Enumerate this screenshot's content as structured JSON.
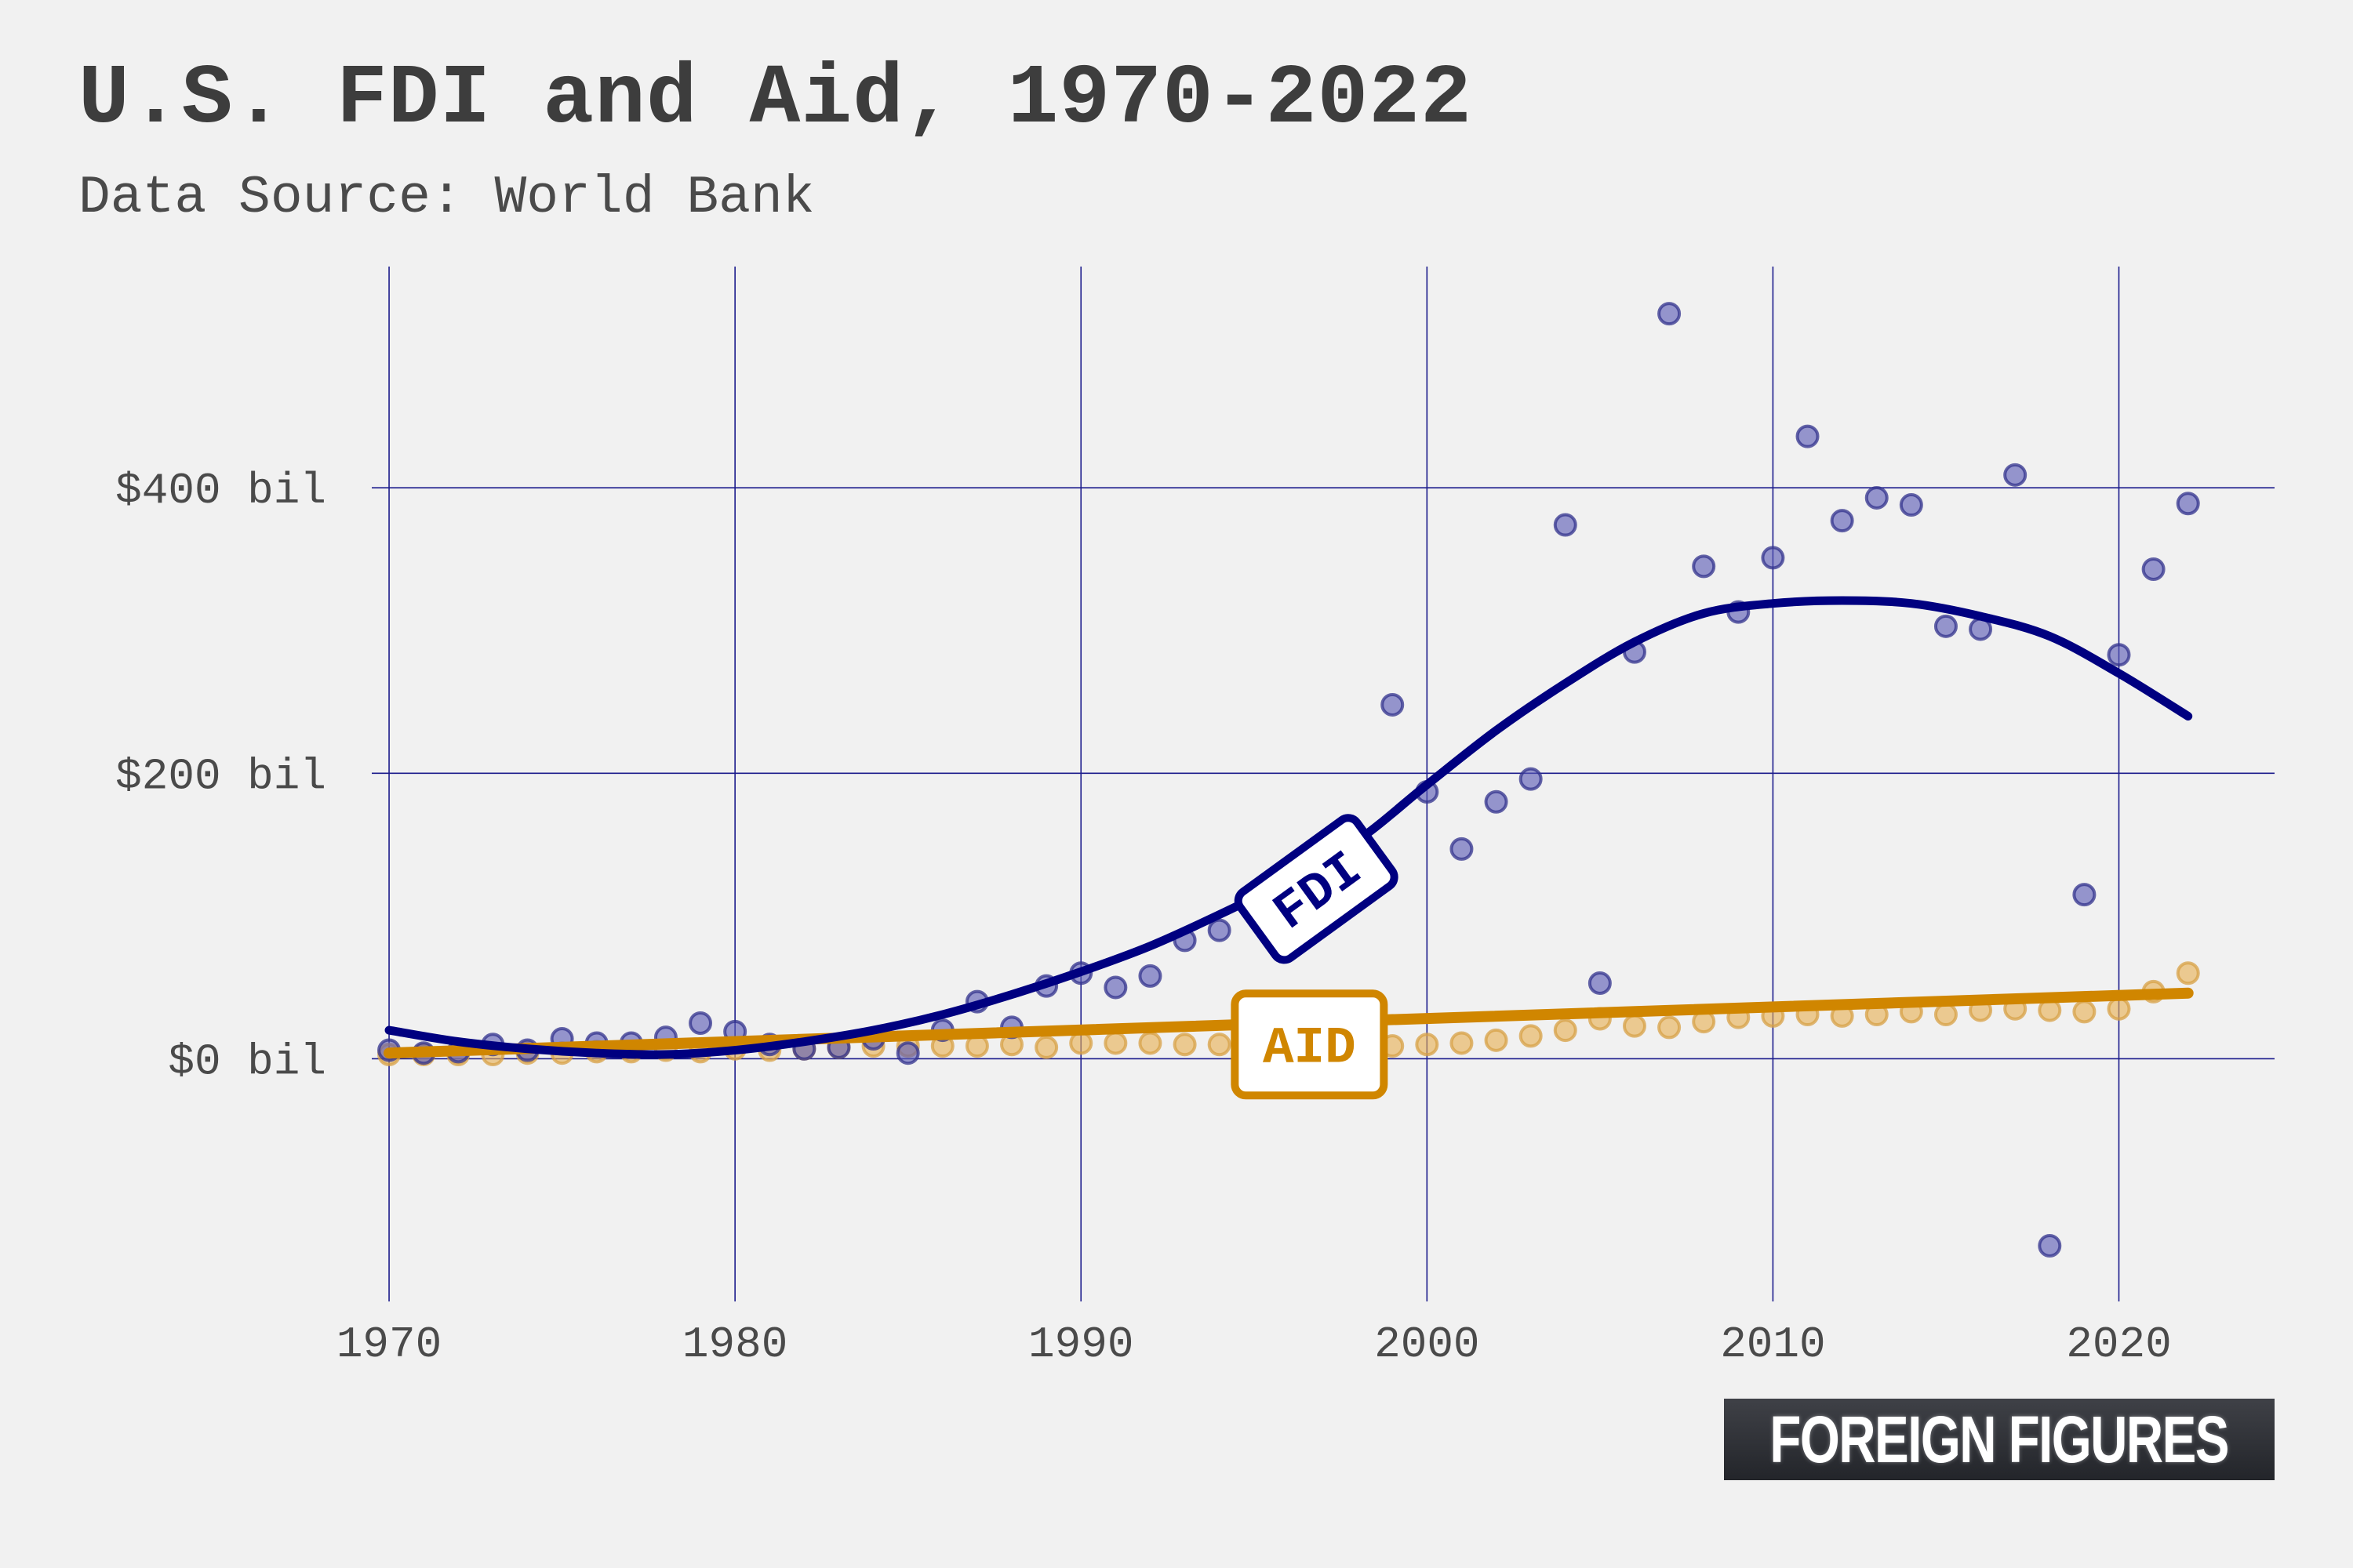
{
  "title": "U.S. FDI and Aid, 1970-2022",
  "subtitle": "Data Source: World Bank",
  "brand": "FOREIGN FIGURES",
  "chart_data": {
    "type": "scatter",
    "x_ticks": [
      1970,
      1980,
      1990,
      2000,
      2010,
      2020
    ],
    "y_ticks": [
      0,
      200,
      400
    ],
    "y_tick_labels": [
      "$0 bil",
      "$200 bil",
      "$400 bil"
    ],
    "xlim": [
      1969.5,
      2024.5
    ],
    "ylim": [
      -170,
      555
    ],
    "grid": true,
    "series": [
      {
        "name": "FDI",
        "label": "FDI",
        "color": "#000080",
        "x": [
          1970,
          1971,
          1972,
          1973,
          1974,
          1975,
          1976,
          1977,
          1978,
          1979,
          1980,
          1981,
          1982,
          1983,
          1984,
          1985,
          1986,
          1987,
          1988,
          1989,
          1990,
          1991,
          1992,
          1993,
          1994,
          1995,
          1996,
          1997,
          1998,
          1999,
          2000,
          2001,
          2002,
          2003,
          2004,
          2005,
          2006,
          2007,
          2008,
          2009,
          2010,
          2011,
          2012,
          2013,
          2014,
          2015,
          2016,
          2017,
          2018,
          2019,
          2020,
          2021,
          2022
        ],
        "values": [
          6,
          4,
          5,
          10,
          6,
          14,
          11,
          11,
          15,
          25,
          19,
          10,
          7,
          8,
          14,
          4,
          20,
          40,
          22,
          51,
          60,
          50,
          58,
          83,
          90,
          108,
          95,
          125,
          150,
          248,
          187,
          147,
          180,
          196,
          374,
          53,
          285,
          522,
          345,
          313,
          351,
          436,
          377,
          393,
          388,
          303,
          301,
          409,
          -131,
          115,
          283,
          343,
          389
        ],
        "trend": [
          [
            1970,
            20
          ],
          [
            1972,
            12
          ],
          [
            1974,
            7
          ],
          [
            1976,
            4
          ],
          [
            1978,
            3
          ],
          [
            1980,
            6
          ],
          [
            1982,
            12
          ],
          [
            1984,
            20
          ],
          [
            1986,
            31
          ],
          [
            1988,
            45
          ],
          [
            1990,
            61
          ],
          [
            1992,
            79
          ],
          [
            1994,
            101
          ],
          [
            1996,
            125
          ],
          [
            1998,
            153
          ],
          [
            2000,
            192
          ],
          [
            2002,
            230
          ],
          [
            2004,
            263
          ],
          [
            2006,
            292
          ],
          [
            2008,
            312
          ],
          [
            2010,
            319
          ],
          [
            2012,
            321
          ],
          [
            2014,
            319
          ],
          [
            2016,
            310
          ],
          [
            2018,
            296
          ],
          [
            2020,
            270
          ],
          [
            2022,
            240
          ]
        ]
      },
      {
        "name": "AID",
        "label": "AID",
        "color": "#d08600",
        "x": [
          1970,
          1971,
          1972,
          1973,
          1974,
          1975,
          1976,
          1977,
          1978,
          1979,
          1980,
          1981,
          1982,
          1983,
          1984,
          1985,
          1986,
          1987,
          1988,
          1989,
          1990,
          1991,
          1992,
          1993,
          1994,
          1995,
          1996,
          1997,
          1998,
          1999,
          2000,
          2001,
          2002,
          2003,
          2004,
          2005,
          2006,
          2007,
          2008,
          2009,
          2010,
          2011,
          2012,
          2013,
          2014,
          2015,
          2016,
          2017,
          2018,
          2019,
          2020,
          2021,
          2022
        ],
        "values": [
          3,
          3,
          3,
          3,
          4,
          4,
          5,
          5,
          6,
          5,
          7,
          6,
          7,
          8,
          9,
          9,
          9,
          9,
          10,
          8,
          11,
          11,
          11,
          10,
          10,
          7,
          9,
          7,
          9,
          9,
          10,
          11,
          13,
          16,
          20,
          28,
          23,
          22,
          26,
          29,
          30,
          31,
          30,
          31,
          33,
          31,
          34,
          35,
          34,
          33,
          35,
          47,
          60
        ],
        "trend": [
          [
            1970,
            4
          ],
          [
            2022,
            46
          ]
        ]
      }
    ]
  }
}
